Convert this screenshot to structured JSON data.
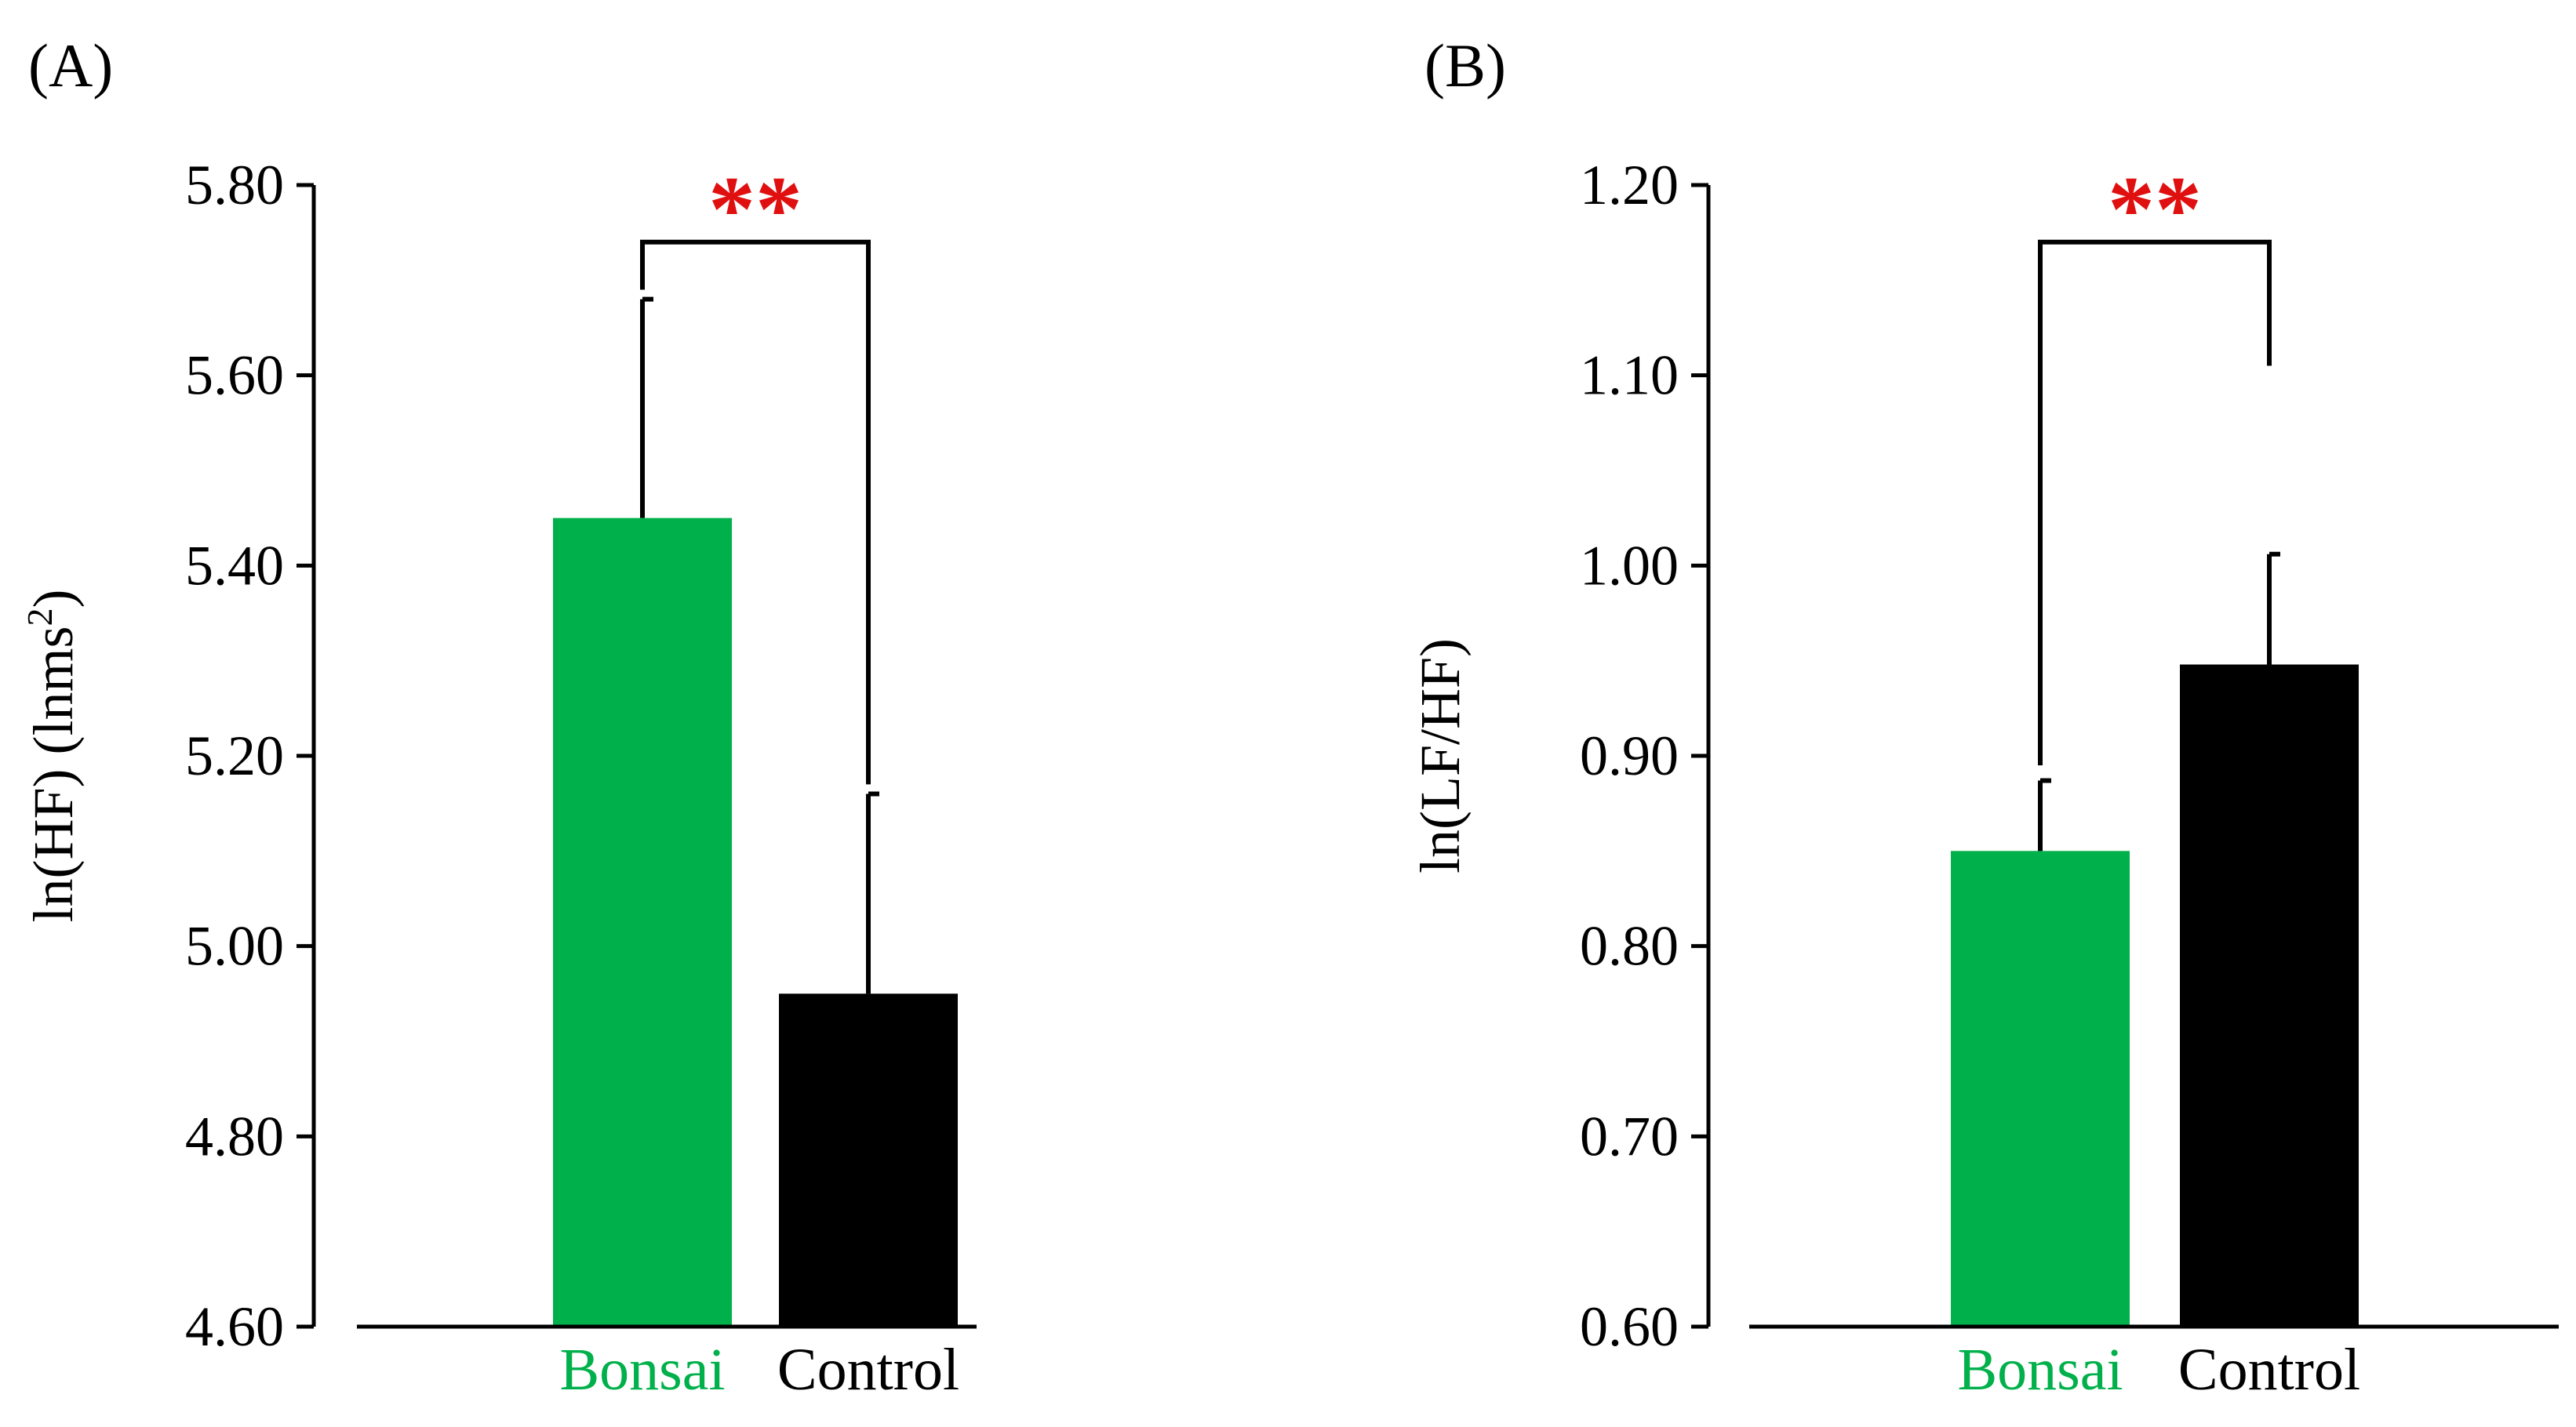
{
  "colors": {
    "bonsai": "#00b04b",
    "control": "#000000",
    "significance": "#e01010",
    "axis": "#000000"
  },
  "chart_data": [
    {
      "panel_label": "(A)",
      "type": "bar",
      "categories": [
        "Bonsai",
        "Control"
      ],
      "values": [
        5.45,
        4.95
      ],
      "errors": [
        0.23,
        0.21
      ],
      "ylabel": "ln(HF) (lnms",
      "ylabel_sup": "2",
      "ylabel_tail": ")",
      "ylim": [
        4.6,
        5.8
      ],
      "yticks": [
        4.6,
        4.8,
        5.0,
        5.2,
        5.4,
        5.6,
        5.8
      ],
      "ytick_labels": [
        "4.60",
        "4.80",
        "5.00",
        "5.20",
        "5.40",
        "5.60",
        "5.80"
      ],
      "significance": "**",
      "bracket_y": 5.74,
      "bracket_left_bottom": 5.69,
      "bracket_right_bottom": 5.17,
      "grid": false
    },
    {
      "panel_label": "(B)",
      "type": "bar",
      "categories": [
        "Bonsai",
        "Control"
      ],
      "values": [
        0.85,
        0.948
      ],
      "errors": [
        0.037,
        0.058
      ],
      "ylabel": "ln(LF/HF)",
      "ylabel_sup": "",
      "ylabel_tail": "",
      "ylim": [
        0.6,
        1.2
      ],
      "yticks": [
        0.6,
        0.7,
        0.8,
        0.9,
        1.0,
        1.1,
        1.2
      ],
      "ytick_labels": [
        "0.60",
        "0.70",
        "0.80",
        "0.90",
        "1.00",
        "1.10",
        "1.20"
      ],
      "significance": "**",
      "bracket_y": 1.17,
      "bracket_left_bottom": 0.895,
      "bracket_right_bottom": 1.105,
      "grid": false
    }
  ]
}
